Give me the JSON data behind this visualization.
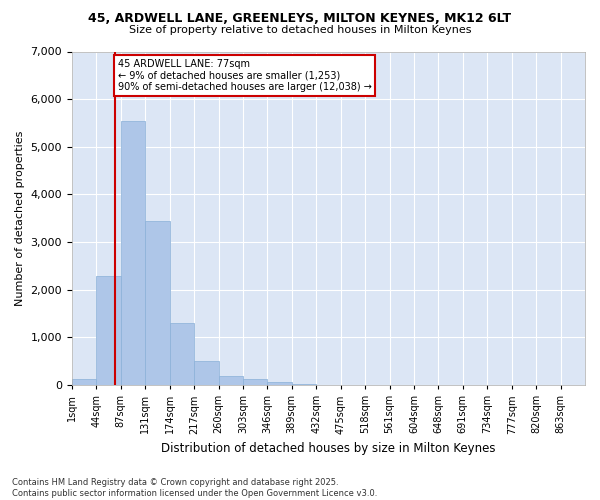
{
  "title_line1": "45, ARDWELL LANE, GREENLEYS, MILTON KEYNES, MK12 6LT",
  "title_line2": "Size of property relative to detached houses in Milton Keynes",
  "xlabel": "Distribution of detached houses by size in Milton Keynes",
  "ylabel": "Number of detached properties",
  "bin_labels": [
    "1sqm",
    "44sqm",
    "87sqm",
    "131sqm",
    "174sqm",
    "217sqm",
    "260sqm",
    "303sqm",
    "346sqm",
    "389sqm",
    "432sqm",
    "475sqm",
    "518sqm",
    "561sqm",
    "604sqm",
    "648sqm",
    "691sqm",
    "734sqm",
    "777sqm",
    "820sqm",
    "863sqm"
  ],
  "bar_values": [
    120,
    2300,
    5550,
    3450,
    1300,
    500,
    200,
    120,
    60,
    20,
    5,
    0,
    0,
    0,
    0,
    0,
    0,
    0,
    0,
    0
  ],
  "bar_color": "#aec6e8",
  "bar_edge_color": "#8ab0d8",
  "vline_x": 0.77,
  "vline_color": "#cc0000",
  "annotation_line1": "45 ARDWELL LANE: 77sqm",
  "annotation_line2": "← 9% of detached houses are smaller (1,253)",
  "annotation_line3": "90% of semi-detached houses are larger (12,038) →",
  "annotation_box_facecolor": "#ffffff",
  "annotation_box_edgecolor": "#cc0000",
  "plot_bg_color": "#dce6f5",
  "figure_bg_color": "#ffffff",
  "grid_color": "#ffffff",
  "ylim": [
    0,
    7000
  ],
  "yticks": [
    0,
    1000,
    2000,
    3000,
    4000,
    5000,
    6000,
    7000
  ],
  "footnote_line1": "Contains HM Land Registry data © Crown copyright and database right 2025.",
  "footnote_line2": "Contains public sector information licensed under the Open Government Licence v3.0."
}
